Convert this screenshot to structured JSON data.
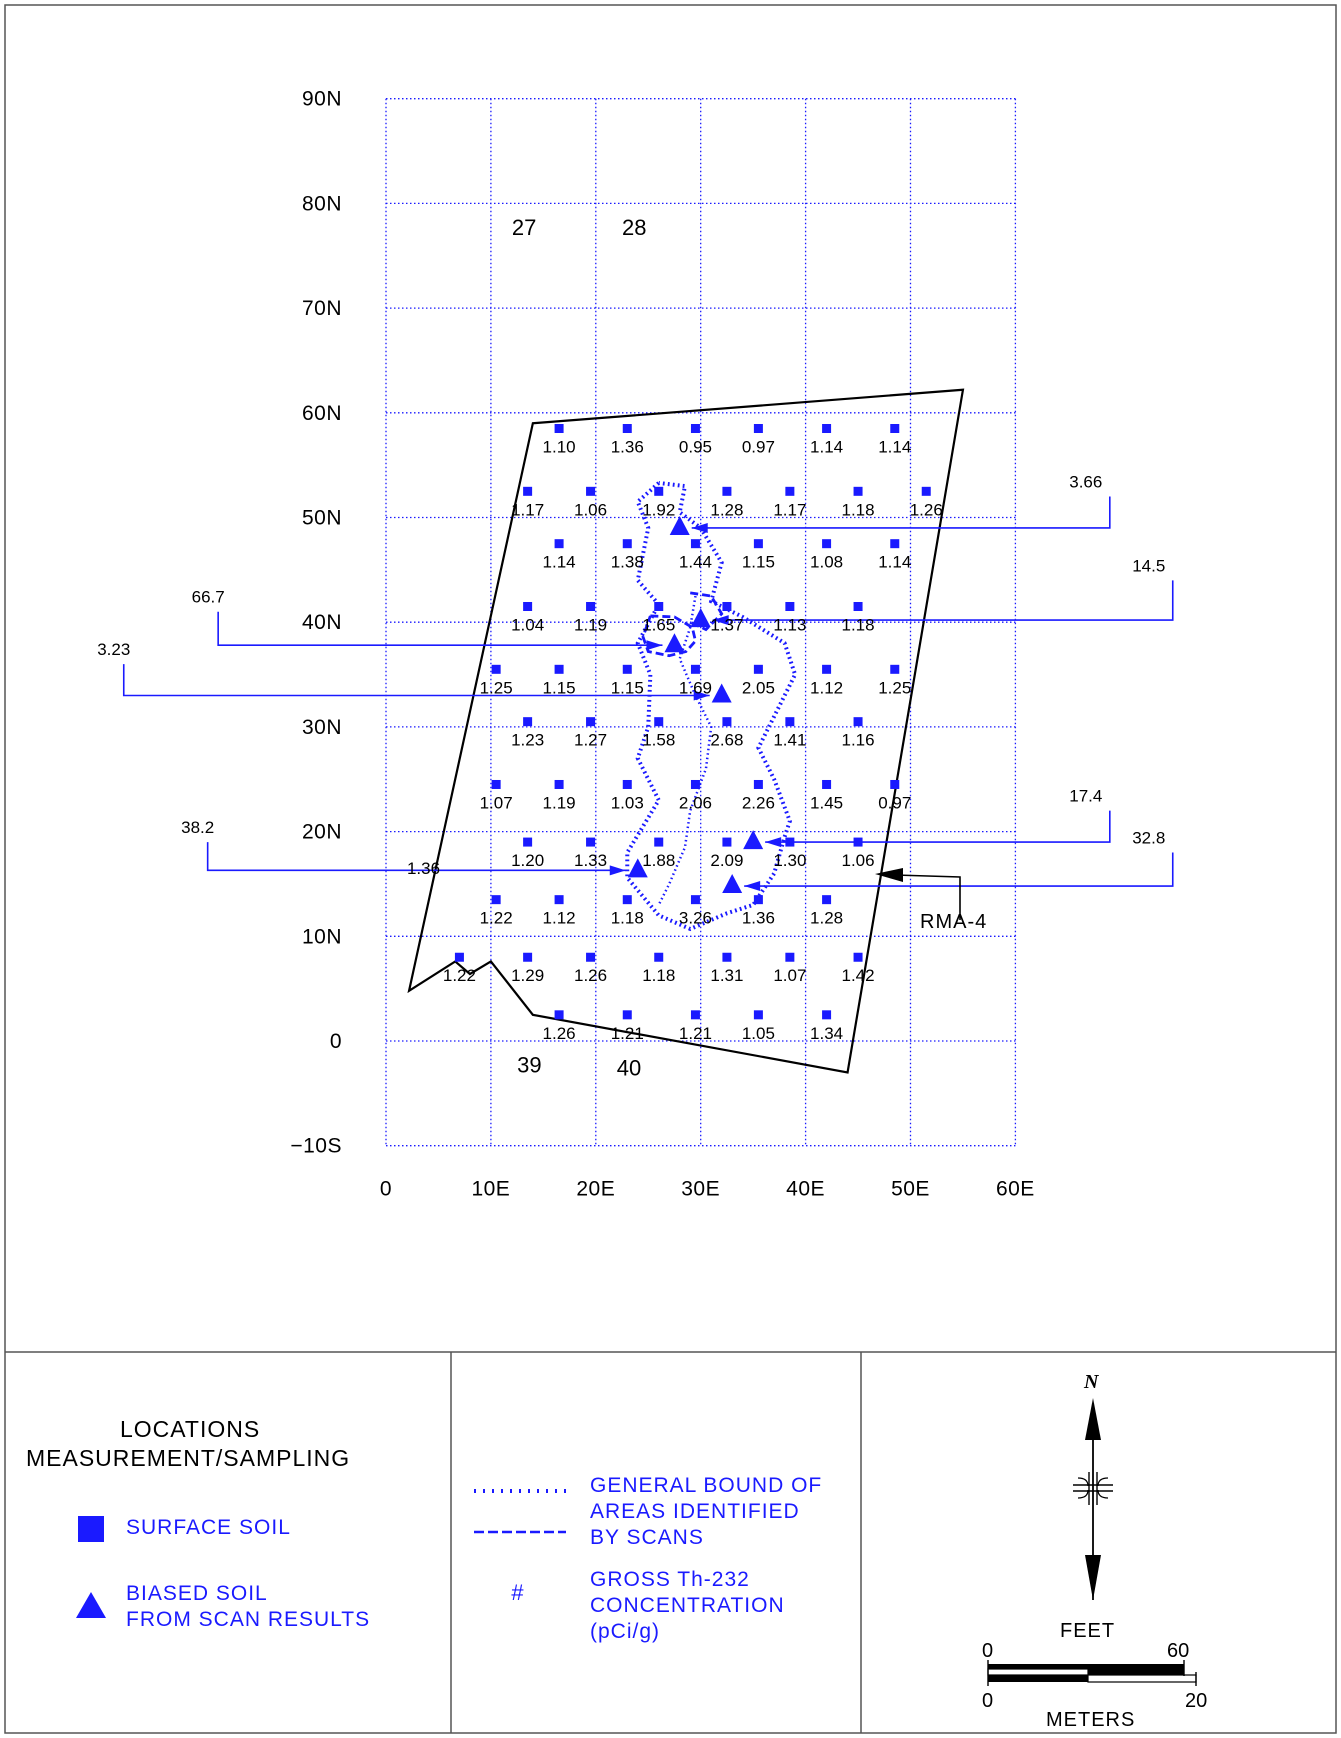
{
  "map": {
    "y_axis_labels": [
      "90N",
      "80N",
      "70N",
      "60N",
      "50N",
      "40N",
      "30N",
      "20N",
      "10N",
      "0",
      "-10S"
    ],
    "x_axis_labels": [
      "0",
      "10E",
      "20E",
      "30E",
      "40E",
      "50E",
      "60E"
    ],
    "grid_numbers": [
      {
        "text": "27",
        "e": 12,
        "n": 77
      },
      {
        "text": "28",
        "e": 22.5,
        "n": 77
      },
      {
        "text": "39",
        "e": 12.5,
        "n": -3
      },
      {
        "text": "40",
        "e": 22,
        "n": -3.3
      }
    ],
    "surface_soil": [
      {
        "e": 16.5,
        "n": 58.5,
        "v": "1.10"
      },
      {
        "e": 23,
        "n": 58.5,
        "v": "1.36"
      },
      {
        "e": 29.5,
        "n": 58.5,
        "v": "0.95"
      },
      {
        "e": 35.5,
        "n": 58.5,
        "v": "0.97"
      },
      {
        "e": 42,
        "n": 58.5,
        "v": "1.14"
      },
      {
        "e": 48.5,
        "n": 58.5,
        "v": "1.14"
      },
      {
        "e": 13.5,
        "n": 52.5,
        "v": "1.17"
      },
      {
        "e": 19.5,
        "n": 52.5,
        "v": "1.06"
      },
      {
        "e": 26,
        "n": 52.5,
        "v": "1.92"
      },
      {
        "e": 32.5,
        "n": 52.5,
        "v": "1.28"
      },
      {
        "e": 38.5,
        "n": 52.5,
        "v": "1.17"
      },
      {
        "e": 45,
        "n": 52.5,
        "v": "1.18"
      },
      {
        "e": 51.5,
        "n": 52.5,
        "v": "1.26"
      },
      {
        "e": 16.5,
        "n": 47.5,
        "v": "1.14"
      },
      {
        "e": 23,
        "n": 47.5,
        "v": "1.38"
      },
      {
        "e": 29.5,
        "n": 47.5,
        "v": "1.44"
      },
      {
        "e": 35.5,
        "n": 47.5,
        "v": "1.15"
      },
      {
        "e": 42,
        "n": 47.5,
        "v": "1.08"
      },
      {
        "e": 48.5,
        "n": 47.5,
        "v": "1.14"
      },
      {
        "e": 13.5,
        "n": 41.5,
        "v": "1.04"
      },
      {
        "e": 19.5,
        "n": 41.5,
        "v": "1.19"
      },
      {
        "e": 26,
        "n": 41.5,
        "v": "1.65"
      },
      {
        "e": 32.5,
        "n": 41.5,
        "v": "1.37"
      },
      {
        "e": 38.5,
        "n": 41.5,
        "v": "1.13"
      },
      {
        "e": 45,
        "n": 41.5,
        "v": "1.18"
      },
      {
        "e": 10.5,
        "n": 35.5,
        "v": "1.25"
      },
      {
        "e": 16.5,
        "n": 35.5,
        "v": "1.15"
      },
      {
        "e": 23,
        "n": 35.5,
        "v": "1.15"
      },
      {
        "e": 29.5,
        "n": 35.5,
        "v": "1.69"
      },
      {
        "e": 35.5,
        "n": 35.5,
        "v": "2.05"
      },
      {
        "e": 42,
        "n": 35.5,
        "v": "1.12"
      },
      {
        "e": 48.5,
        "n": 35.5,
        "v": "1.25"
      },
      {
        "e": 13.5,
        "n": 30.5,
        "v": "1.23"
      },
      {
        "e": 19.5,
        "n": 30.5,
        "v": "1.27"
      },
      {
        "e": 26,
        "n": 30.5,
        "v": "1.58"
      },
      {
        "e": 32.5,
        "n": 30.5,
        "v": "2.68"
      },
      {
        "e": 38.5,
        "n": 30.5,
        "v": "1.41"
      },
      {
        "e": 45,
        "n": 30.5,
        "v": "1.16"
      },
      {
        "e": 10.5,
        "n": 24.5,
        "v": "1.07"
      },
      {
        "e": 16.5,
        "n": 24.5,
        "v": "1.19"
      },
      {
        "e": 23,
        "n": 24.5,
        "v": "1.03"
      },
      {
        "e": 29.5,
        "n": 24.5,
        "v": "2.06"
      },
      {
        "e": 35.5,
        "n": 24.5,
        "v": "2.26"
      },
      {
        "e": 42,
        "n": 24.5,
        "v": "1.45"
      },
      {
        "e": 48.5,
        "n": 24.5,
        "v": "0.97"
      },
      {
        "e": 13.5,
        "n": 19,
        "v": "1.20"
      },
      {
        "e": 19.5,
        "n": 19,
        "v": "1.33"
      },
      {
        "e": 26,
        "n": 19,
        "v": "1.88"
      },
      {
        "e": 32.5,
        "n": 19,
        "v": "2.09"
      },
      {
        "e": 38.5,
        "n": 19,
        "v": "1.30"
      },
      {
        "e": 45,
        "n": 19,
        "v": "1.06"
      },
      {
        "e": 10.5,
        "n": 13.5,
        "v": "1.22"
      },
      {
        "e": 16.5,
        "n": 13.5,
        "v": "1.12"
      },
      {
        "e": 23,
        "n": 13.5,
        "v": "1.18"
      },
      {
        "e": 29.5,
        "n": 13.5,
        "v": "3.26"
      },
      {
        "e": 35.5,
        "n": 13.5,
        "v": "1.36"
      },
      {
        "e": 42,
        "n": 13.5,
        "v": "1.28"
      },
      {
        "e": 7,
        "n": 8,
        "v": "1.22"
      },
      {
        "e": 13.5,
        "n": 8,
        "v": "1.29"
      },
      {
        "e": 19.5,
        "n": 8,
        "v": "1.26"
      },
      {
        "e": 26,
        "n": 8,
        "v": "1.18"
      },
      {
        "e": 32.5,
        "n": 8,
        "v": "1.31"
      },
      {
        "e": 38.5,
        "n": 8,
        "v": "1.07"
      },
      {
        "e": 45,
        "n": 8,
        "v": "1.42"
      },
      {
        "e": 16.5,
        "n": 2.5,
        "v": "1.26"
      },
      {
        "e": 23,
        "n": 2.5,
        "v": "1.21"
      },
      {
        "e": 29.5,
        "n": 2.5,
        "v": "1.21"
      },
      {
        "e": 35.5,
        "n": 2.5,
        "v": "1.05"
      },
      {
        "e": 42,
        "n": 2.5,
        "v": "1.34"
      }
    ],
    "biased_soil": [
      {
        "e": 28,
        "n": 49,
        "v": "3.66",
        "dir": "right",
        "ext_e": 69,
        "ext_n": 52
      },
      {
        "e": 30,
        "n": 40.2,
        "v": "14.5",
        "dir": "right",
        "ext_e": 75,
        "ext_n": 44
      },
      {
        "e": 27.5,
        "n": 37.8,
        "v": "66.7",
        "dir": "left",
        "ext_e": -16,
        "ext_n": 41
      },
      {
        "e": 32,
        "n": 33,
        "v": "3.23",
        "dir": "left",
        "ext_e": -25,
        "ext_n": 36
      },
      {
        "e": 35,
        "n": 19,
        "v": "17.4",
        "dir": "right",
        "ext_e": 69,
        "ext_n": 22
      },
      {
        "e": 24,
        "n": 16.3,
        "v": "38.2",
        "dir": "left",
        "ext_e": -17,
        "ext_n": 19
      },
      {
        "e": 33,
        "n": 14.8,
        "v": "32.8",
        "dir": "right",
        "ext_e": 75,
        "ext_n": 18
      }
    ],
    "extra_label": {
      "text": "1.36",
      "e": 2,
      "n": 16.5
    },
    "rma_label": "RMA-4"
  },
  "legend": {
    "locations_title_1": "LOCATIONS",
    "locations_title_2": "MEASUREMENT/SAMPLING",
    "surface_soil": "SURFACE SOIL",
    "biased_soil_1": "BIASED SOIL",
    "biased_soil_2": "FROM SCAN RESULTS",
    "bound_1": "GENERAL BOUND OF",
    "bound_2": "AREAS IDENTIFIED",
    "bound_3": "BY SCANS",
    "hash_symbol": "#",
    "gross_1": "GROSS Th-232",
    "gross_2": "CONCENTRATION",
    "gross_3": "(pCi/g)"
  },
  "scale": {
    "north": "N",
    "feet_label": "FEET",
    "feet_0": "0",
    "feet_60": "60",
    "meters_label": "METERS",
    "meters_0": "0",
    "meters_20": "20"
  }
}
